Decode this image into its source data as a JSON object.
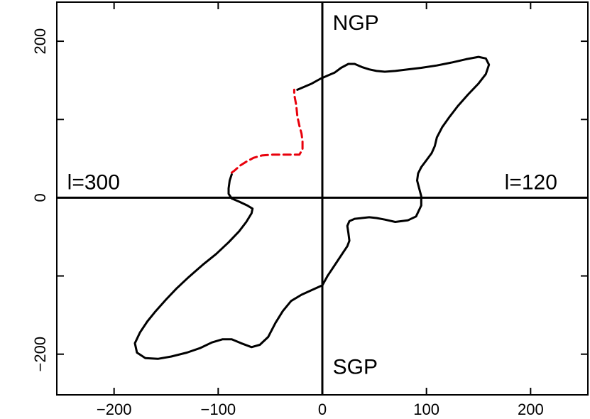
{
  "chart_data": {
    "type": "line",
    "title": "",
    "xlabel": "",
    "ylabel": "",
    "xlim": [
      -255,
      255
    ],
    "ylim": [
      -252,
      250
    ],
    "x_ticks": [
      -200,
      -100,
      0,
      100,
      200
    ],
    "x_tick_labels": [
      "−200",
      "−100",
      "0",
      "100",
      "200"
    ],
    "y_ticks": [
      -200,
      0,
      200
    ],
    "y_tick_labels": [
      "−200",
      "0",
      "200"
    ],
    "y_minor_ticks": [
      -100,
      100
    ],
    "grid": false,
    "reference_lines": [
      {
        "orientation": "vertical",
        "value": 0
      },
      {
        "orientation": "horizontal",
        "value": 0
      }
    ],
    "annotations": [
      {
        "text": "NGP",
        "x": 10,
        "y": 222
      },
      {
        "text": "SGP",
        "x": 10,
        "y": -218
      },
      {
        "text": "l=300",
        "x": -245,
        "y": 18
      },
      {
        "text": "l=120",
        "x": 175,
        "y": 18
      }
    ],
    "series": [
      {
        "style": "solid",
        "color": "#000000",
        "points": [
          [
            -24,
            138
          ],
          [
            -17,
            142
          ],
          [
            -10,
            146
          ],
          [
            -2,
            152
          ],
          [
            5,
            156
          ],
          [
            12,
            160
          ],
          [
            18,
            166
          ],
          [
            25,
            171
          ],
          [
            31,
            171
          ],
          [
            38,
            167
          ],
          [
            45,
            164
          ],
          [
            52,
            162
          ],
          [
            60,
            161
          ],
          [
            70,
            162
          ],
          [
            82,
            164
          ],
          [
            95,
            166
          ],
          [
            110,
            169
          ],
          [
            125,
            173
          ],
          [
            138,
            177
          ],
          [
            150,
            180
          ],
          [
            157,
            178
          ],
          [
            160,
            170
          ],
          [
            157,
            158
          ],
          [
            150,
            146
          ],
          [
            140,
            132
          ],
          [
            130,
            117
          ],
          [
            122,
            103
          ],
          [
            115,
            90
          ],
          [
            110,
            77
          ],
          [
            108,
            66
          ],
          [
            105,
            57
          ],
          [
            100,
            48
          ],
          [
            95,
            39
          ],
          [
            92,
            31
          ],
          [
            91,
            22
          ],
          [
            93,
            12
          ],
          [
            95,
            2
          ],
          [
            95,
            -10
          ],
          [
            90,
            -24
          ],
          [
            82,
            -29
          ],
          [
            70,
            -31
          ],
          [
            60,
            -28
          ],
          [
            52,
            -26
          ],
          [
            45,
            -25
          ],
          [
            38,
            -26
          ],
          [
            31,
            -27
          ],
          [
            26,
            -30
          ],
          [
            24,
            -36
          ],
          [
            25,
            -45
          ],
          [
            26,
            -55
          ],
          [
            24,
            -62
          ],
          [
            20,
            -70
          ],
          [
            15,
            -80
          ],
          [
            10,
            -90
          ],
          [
            5,
            -100
          ],
          [
            0,
            -112
          ],
          [
            -10,
            -118
          ],
          [
            -20,
            -124
          ],
          [
            -30,
            -132
          ],
          [
            -38,
            -145
          ],
          [
            -45,
            -160
          ],
          [
            -52,
            -178
          ],
          [
            -60,
            -188
          ],
          [
            -68,
            -191
          ],
          [
            -78,
            -186
          ],
          [
            -87,
            -181
          ],
          [
            -96,
            -181
          ],
          [
            -106,
            -185
          ],
          [
            -117,
            -192
          ],
          [
            -130,
            -198
          ],
          [
            -145,
            -203
          ],
          [
            -158,
            -206
          ],
          [
            -170,
            -205
          ],
          [
            -178,
            -198
          ],
          [
            -180,
            -186
          ],
          [
            -175,
            -172
          ],
          [
            -168,
            -158
          ],
          [
            -160,
            -145
          ],
          [
            -150,
            -130
          ],
          [
            -140,
            -116
          ],
          [
            -128,
            -101
          ],
          [
            -115,
            -86
          ],
          [
            -102,
            -72
          ],
          [
            -90,
            -57
          ],
          [
            -80,
            -43
          ],
          [
            -73,
            -31
          ],
          [
            -68,
            -20
          ],
          [
            -67,
            -14
          ],
          [
            -72,
            -10
          ],
          [
            -80,
            -5
          ],
          [
            -87,
            -1
          ],
          [
            -90,
            5
          ],
          [
            -90,
            12
          ],
          [
            -89,
            22
          ],
          [
            -87,
            30
          ]
        ]
      },
      {
        "style": "dashed",
        "color": "#e8000b",
        "points": [
          [
            -87,
            32
          ],
          [
            -84,
            35
          ],
          [
            -79,
            41
          ],
          [
            -73,
            46
          ],
          [
            -66,
            51
          ],
          [
            -58,
            54
          ],
          [
            -48,
            55
          ],
          [
            -38,
            55
          ],
          [
            -30,
            55
          ],
          [
            -22,
            55
          ],
          [
            -19,
            62
          ],
          [
            -19,
            72
          ],
          [
            -20,
            82
          ],
          [
            -22,
            92
          ],
          [
            -24,
            104
          ],
          [
            -25,
            118
          ],
          [
            -27,
            132
          ],
          [
            -27,
            138
          ]
        ]
      }
    ]
  }
}
